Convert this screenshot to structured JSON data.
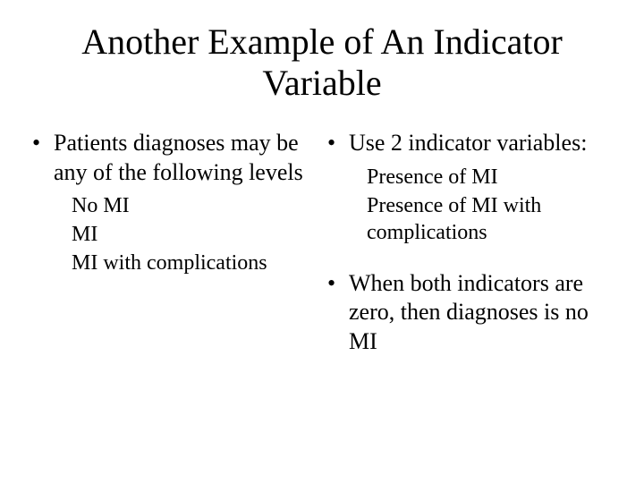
{
  "title": "Another Example of An Indicator Variable",
  "left": {
    "bullet1": "Patients diagnoses may be any of the following levels",
    "sub1": "No MI",
    "sub2": "MI",
    "sub3": "MI with complications"
  },
  "right": {
    "bullet1": "Use 2 indicator variables:",
    "sub1": "Presence of MI",
    "sub2": "Presence of MI with complications",
    "bullet2": "When both indicators are zero,  then diagnoses is no MI"
  }
}
